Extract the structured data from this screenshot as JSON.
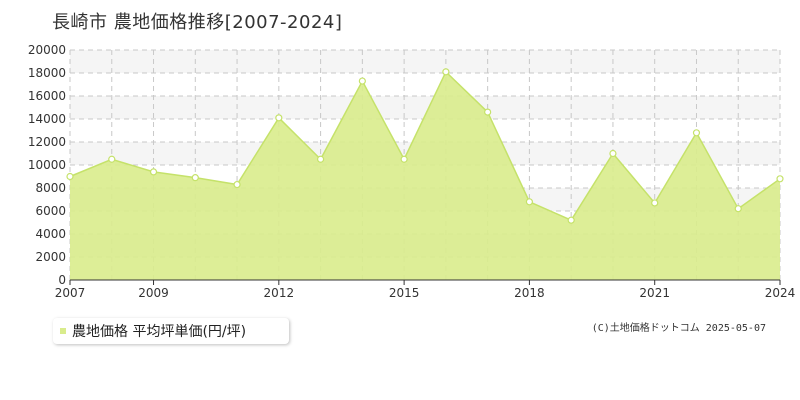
{
  "title": "長崎市  農地価格推移[2007-2024]",
  "copyright": "(C)土地価格ドットコム 2025-05-07",
  "colors": {
    "fill": "#d9ec8c",
    "line": "#c5e26a",
    "grid": "#c8c8c8",
    "band": "#f5f5f5"
  },
  "chart_data": {
    "type": "area",
    "title": "長崎市  農地価格推移[2007-2024]",
    "x": [
      2007,
      2008,
      2009,
      2010,
      2011,
      2012,
      2013,
      2014,
      2015,
      2016,
      2017,
      2018,
      2019,
      2020,
      2021,
      2022,
      2023,
      2024
    ],
    "series": [
      {
        "name": "農地価格 平均坪単価(円/坪)",
        "values": [
          9000,
          10500,
          9400,
          8900,
          8300,
          14100,
          10500,
          17300,
          10500,
          18100,
          14600,
          6800,
          5200,
          11000,
          6700,
          12800,
          6200,
          8800
        ]
      }
    ],
    "xticks": [
      "2007",
      "2009",
      "2012",
      "2015",
      "2018",
      "2021",
      "2024"
    ],
    "yticks": [
      "0",
      "2000",
      "4000",
      "6000",
      "8000",
      "10000",
      "12000",
      "14000",
      "16000",
      "18000",
      "20000"
    ],
    "xlim": [
      2007,
      2024
    ],
    "ylim": [
      0,
      20000
    ],
    "grid": true,
    "legend": "bottom-left"
  }
}
